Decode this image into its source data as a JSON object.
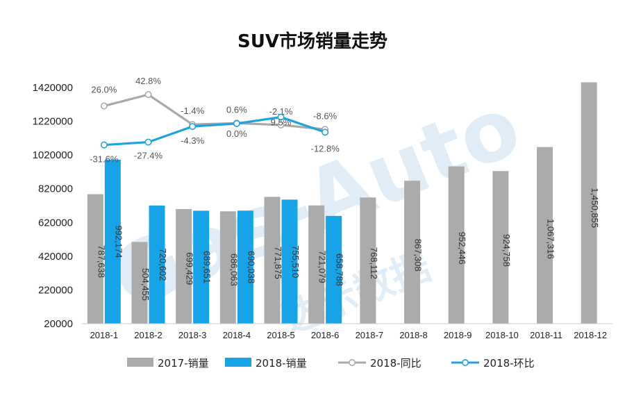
{
  "chart_data": {
    "type": "bar+line",
    "title": "SUV市场销量走势",
    "categories": [
      "2018-1",
      "2018-2",
      "2018-3",
      "2018-4",
      "2018-5",
      "2018-6",
      "2018-7",
      "2018-8",
      "2018-9",
      "2018-10",
      "2018-11",
      "2018-12"
    ],
    "y_ticks": [
      "1420000",
      "1220000",
      "1020000",
      "820000",
      "620000",
      "420000",
      "220000",
      "20000"
    ],
    "ylim": [
      20000,
      1420000
    ],
    "bar_series": [
      {
        "name": "2017-销量",
        "color": "#ababab",
        "values": [
          787638,
          504455,
          699429,
          686063,
          771875,
          721079,
          768112,
          867308,
          952446,
          924758,
          1067316,
          1450855
        ],
        "labels": [
          "787,638",
          "504,455",
          "699,429",
          "686,063",
          "771,875",
          "721,079",
          "768,112",
          "867,308",
          "952,446",
          "924,758",
          "1,067,316",
          "1,450,855"
        ]
      },
      {
        "name": "2018-销量",
        "color": "#17a3e8",
        "values": [
          992174,
          720602,
          689651,
          690038,
          755510,
          658788
        ],
        "labels": [
          "992,174",
          "720,602",
          "689,651",
          "690,038",
          "755,510",
          "658,788"
        ]
      }
    ],
    "line_series": [
      {
        "name": "2018-同比",
        "color": "#a9a9a9",
        "values": [
          26.0,
          42.8,
          -1.4,
          0.6,
          -2.1,
          -8.6
        ],
        "labels": [
          "26.0%",
          "42.8%",
          "-1.4%",
          "0.6%",
          "-2.1%",
          "-8.6%"
        ]
      },
      {
        "name": "2018-环比",
        "color": "#1fa2e0",
        "values": [
          -31.6,
          -27.4,
          -4.3,
          0.0,
          9.5,
          -12.8
        ],
        "labels": [
          "-31.6%",
          "-27.4%",
          "-4.3%",
          "0.0%",
          "9.5%",
          "-12.8%"
        ]
      }
    ],
    "grid": false,
    "legend_position": "bottom"
  },
  "watermark": {
    "text": "Gas-Auto",
    "subtext": "达示数据"
  }
}
